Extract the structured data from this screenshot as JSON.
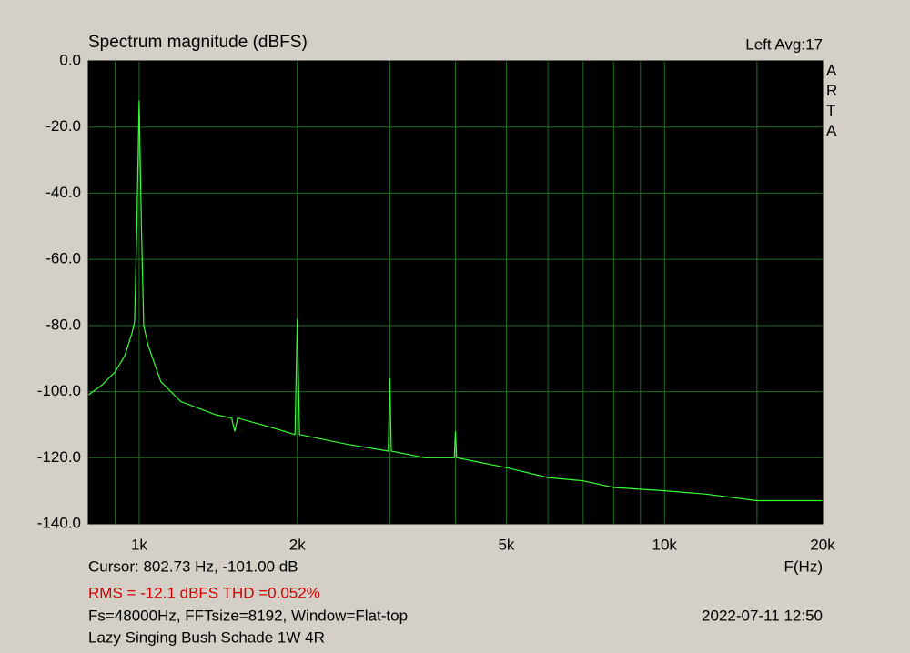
{
  "chart_data": {
    "type": "line",
    "title": "Spectrum magnitude (dBFS)",
    "channel_label": "Left  Avg:17",
    "side_label": "ARTA",
    "x_label": "F(Hz)",
    "cursor_text": "Cursor: 802.73 Hz, -101.00 dB",
    "summary_text": "RMS =  -12.1 dBFS  THD =0.052%",
    "settings_text": "Fs=48000Hz, FFTsize=8192, Window=Flat-top",
    "timestamp": "2022-07-11  12:50",
    "caption": "Lazy Singing Bush Schade 1W 4R",
    "xscale": "log",
    "grid": true,
    "color": "#33ff33",
    "background": "#000000",
    "grid_color": "#1f6e1f",
    "x": [
      800,
      850,
      900,
      940,
      970,
      980,
      990,
      1000,
      1010,
      1020,
      1040,
      1100,
      1200,
      1400,
      1500,
      1520,
      1540,
      1800,
      1980,
      2000,
      2020,
      2500,
      2980,
      3000,
      3020,
      3500,
      3980,
      4000,
      4020,
      5000,
      6000,
      7000,
      8000,
      10000,
      12000,
      15000,
      20000
    ],
    "values": [
      -101,
      -98,
      -94,
      -89,
      -82,
      -79,
      -50,
      -12,
      -50,
      -80,
      -86,
      -97,
      -103,
      -107,
      -108,
      -112,
      -108,
      -111,
      -113,
      -78,
      -113,
      -116,
      -118,
      -96,
      -118,
      -120,
      -120,
      -112,
      -120,
      -123,
      -126,
      -127,
      -129,
      -130,
      -131,
      -133,
      -133
    ],
    "xlim": [
      800,
      20000
    ],
    "ylim": [
      -140,
      0
    ],
    "xticks": [
      {
        "value": 1000,
        "label": "1k"
      },
      {
        "value": 2000,
        "label": "2k"
      },
      {
        "value": 5000,
        "label": "5k"
      },
      {
        "value": 10000,
        "label": "10k"
      },
      {
        "value": 20000,
        "label": "20k"
      }
    ],
    "x_minor_grid": [
      900,
      3000,
      4000,
      6000,
      7000,
      8000,
      9000,
      15000
    ],
    "yticks": [
      {
        "value": 0,
        "label": "0.0"
      },
      {
        "value": -20,
        "label": "-20.0"
      },
      {
        "value": -40,
        "label": "-40.0"
      },
      {
        "value": -60,
        "label": "-60.0"
      },
      {
        "value": -80,
        "label": "-80.0"
      },
      {
        "value": -100,
        "label": "-100.0"
      },
      {
        "value": -120,
        "label": "-120.0"
      },
      {
        "value": -140,
        "label": "-140.0"
      }
    ]
  }
}
